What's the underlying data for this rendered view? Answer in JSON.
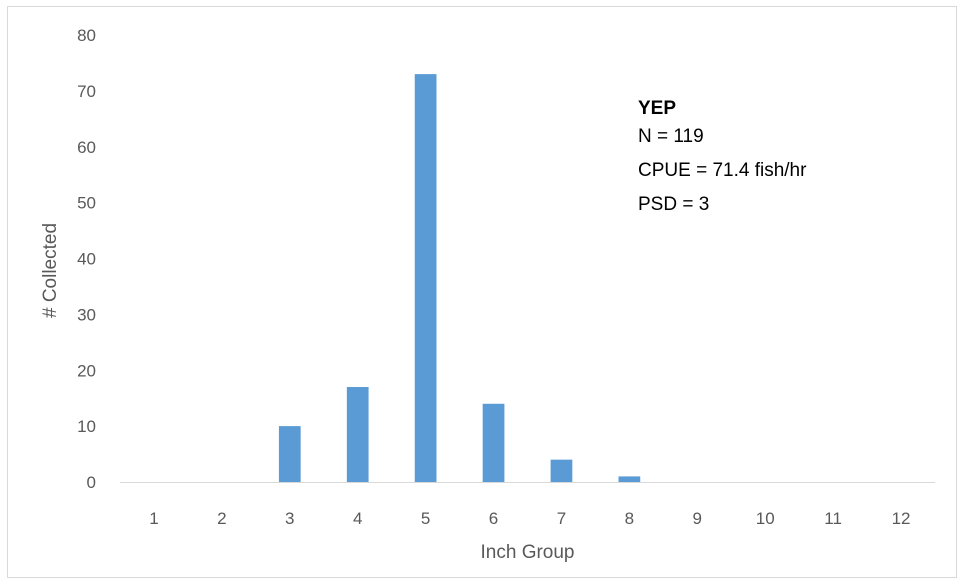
{
  "chart_data": {
    "type": "bar",
    "categories": [
      "1",
      "2",
      "3",
      "4",
      "5",
      "6",
      "7",
      "8",
      "9",
      "10",
      "11",
      "12"
    ],
    "values": [
      0,
      0,
      10,
      17,
      73,
      14,
      4,
      1,
      0,
      0,
      0,
      0
    ],
    "xlabel": "Inch Group",
    "ylabel": "# Collected",
    "ylim": [
      0,
      80
    ],
    "yticks": [
      "0",
      "10",
      "20",
      "30",
      "40",
      "50",
      "60",
      "70",
      "80"
    ],
    "grid": false,
    "bar_color": "#5b9bd5",
    "annotation": {
      "title": "YEP",
      "lines": [
        "N = 119",
        "CPUE = 71.4 fish/hr",
        "PSD = 3"
      ]
    }
  }
}
